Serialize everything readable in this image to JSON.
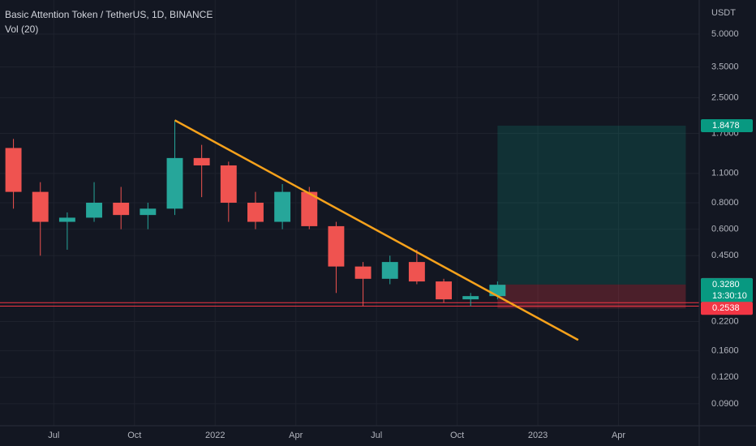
{
  "header": {
    "symbol": "Basic Attention Token / TetherUS, 1D, BINANCE",
    "indicator": "Vol (20)"
  },
  "chart_data": {
    "type": "candlestick",
    "unit": "USDT",
    "log_scale": true,
    "grid": true,
    "colors": {
      "up": "#26a69a",
      "down": "#ef5350"
    },
    "x": [
      "2021-05",
      "2021-06",
      "2021-07",
      "2021-08",
      "2021-09",
      "2021-10",
      "2021-11",
      "2021-12",
      "2022-01",
      "2022-02",
      "2022-03",
      "2022-04",
      "2022-05",
      "2022-06",
      "2022-07",
      "2022-08",
      "2022-09",
      "2022-10",
      "2022-11"
    ],
    "open": [
      1.45,
      0.9,
      0.65,
      0.68,
      0.8,
      0.7,
      0.75,
      1.3,
      1.2,
      0.8,
      0.65,
      0.9,
      0.62,
      0.4,
      0.35,
      0.42,
      0.34,
      0.28,
      0.29
    ],
    "high": [
      1.6,
      1.0,
      0.72,
      1.0,
      0.95,
      0.8,
      1.96,
      1.5,
      1.25,
      0.9,
      0.98,
      0.95,
      0.65,
      0.42,
      0.45,
      0.48,
      0.35,
      0.3,
      0.34
    ],
    "low": [
      0.75,
      0.45,
      0.48,
      0.65,
      0.6,
      0.6,
      0.7,
      0.85,
      0.65,
      0.6,
      0.6,
      0.6,
      0.3,
      0.26,
      0.33,
      0.33,
      0.27,
      0.26,
      0.28
    ],
    "close": [
      0.9,
      0.65,
      0.68,
      0.8,
      0.7,
      0.75,
      1.3,
      1.2,
      0.8,
      0.65,
      0.9,
      0.62,
      0.4,
      0.35,
      0.42,
      0.34,
      0.28,
      0.29,
      0.328
    ],
    "xlim": [
      "2021-05",
      "2023-07"
    ],
    "xticks": [
      {
        "value": "2021-07",
        "label": "Jul"
      },
      {
        "value": "2021-10",
        "label": "Oct"
      },
      {
        "value": "2022-01",
        "label": "2022"
      },
      {
        "value": "2022-04",
        "label": "Apr"
      },
      {
        "value": "2022-07",
        "label": "Jul"
      },
      {
        "value": "2022-10",
        "label": "Oct"
      },
      {
        "value": "2023-01",
        "label": "2023"
      },
      {
        "value": "2023-04",
        "label": "Apr"
      }
    ],
    "ylim": [
      0.0709,
      7.24
    ],
    "yticks": [
      {
        "value": 5,
        "label": "5.0000"
      },
      {
        "value": 3.5,
        "label": "3.5000"
      },
      {
        "value": 2.5,
        "label": "2.5000"
      },
      {
        "value": 1.7,
        "label": "1.7000"
      },
      {
        "value": 1.1,
        "label": "1.1000"
      },
      {
        "value": 0.8,
        "label": "0.8000"
      },
      {
        "value": 0.6,
        "label": "0.6000"
      },
      {
        "value": 0.45,
        "label": "0.4500"
      },
      {
        "value": 0.22,
        "label": "0.2200"
      },
      {
        "value": 0.16,
        "label": "0.1600"
      },
      {
        "value": 0.12,
        "label": "0.1200"
      },
      {
        "value": 0.09,
        "label": "0.0900"
      }
    ],
    "trendline": {
      "x": [
        "2021-11",
        "2023-02"
      ],
      "y": [
        1.96,
        0.18
      ],
      "color": "#f7a21b"
    },
    "support_lines": {
      "values": [
        0.27,
        0.26
      ],
      "color": "#f23645"
    },
    "position": {
      "x": [
        "2022-11",
        "2023-06"
      ],
      "entry": 0.3288,
      "target": 1.8478,
      "stop": 0.2538,
      "target_color": "#089981",
      "stop_color": "#f23645",
      "entry_color": "#787b86"
    },
    "last_price": {
      "value": 0.328,
      "label": "0.3280",
      "countdown": "13:30:10",
      "color": "#089981"
    }
  }
}
